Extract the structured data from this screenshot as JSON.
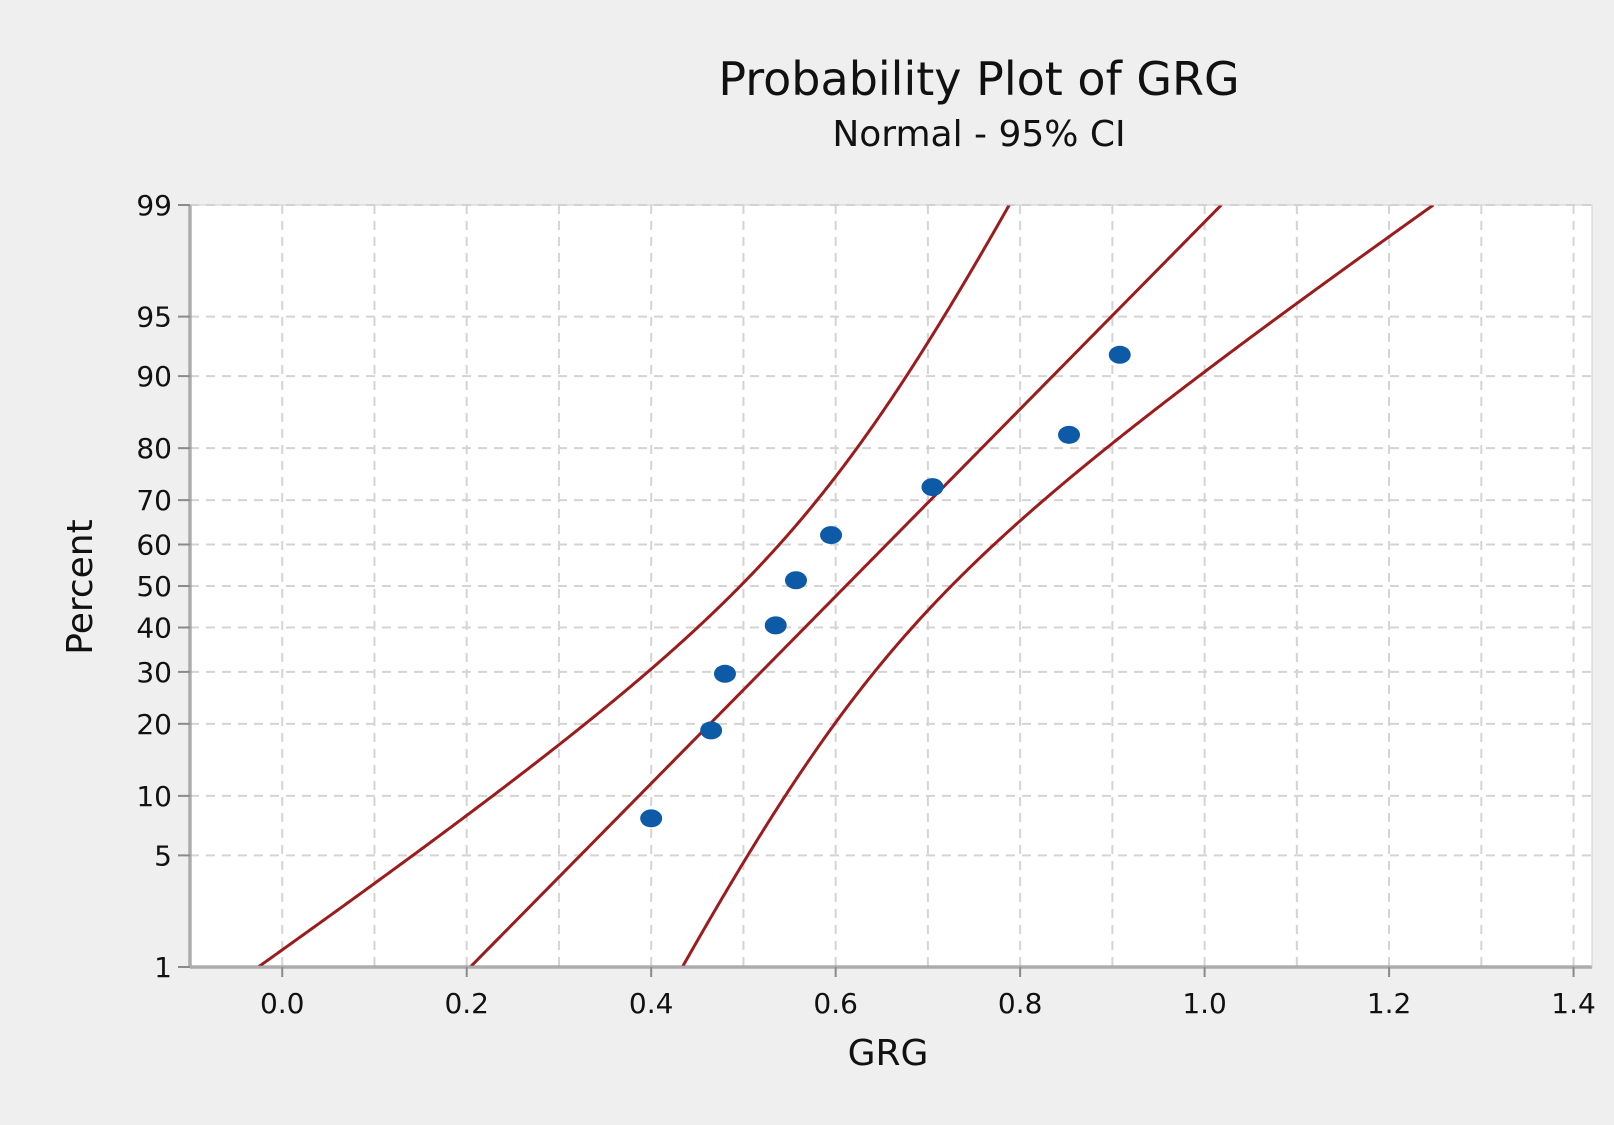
{
  "chart_data": {
    "type": "scatter",
    "title": "Probability Plot of GRG",
    "subtitle": "Normal - 95% CI",
    "xlabel": "GRG",
    "ylabel": "Percent",
    "xlim": [
      -0.1,
      1.42
    ],
    "ylim": [
      1,
      99
    ],
    "y_scale": "normal-probability",
    "x_ticks": [
      "0.0",
      "0.2",
      "0.4",
      "0.6",
      "0.8",
      "1.0",
      "1.2",
      "1.4"
    ],
    "y_ticks": [
      "1",
      "5",
      "10",
      "20",
      "30",
      "40",
      "50",
      "60",
      "70",
      "80",
      "90",
      "95",
      "99"
    ],
    "grid": true,
    "series": [
      {
        "values": [
          {
            "x": 0.4,
            "y": 7.8
          },
          {
            "x": 0.465,
            "y": 18.9
          },
          {
            "x": 0.48,
            "y": 29.6
          },
          {
            "x": 0.535,
            "y": 40.5
          },
          {
            "x": 0.557,
            "y": 51.4
          },
          {
            "x": 0.595,
            "y": 62.2
          },
          {
            "x": 0.705,
            "y": 72.7
          },
          {
            "x": 0.853,
            "y": 82.2
          },
          {
            "x": 0.908,
            "y": 92.1
          }
        ]
      }
    ],
    "fit_line": {
      "mean": 0.611,
      "sd": 0.175
    },
    "ci_level": 0.95,
    "sample_size": 9,
    "colors": {
      "points": "#0d5aa7",
      "lines": "#9b1c1c",
      "grid": "#d4d4d4",
      "background": "#efefef",
      "plot_area": "#ffffff"
    }
  }
}
